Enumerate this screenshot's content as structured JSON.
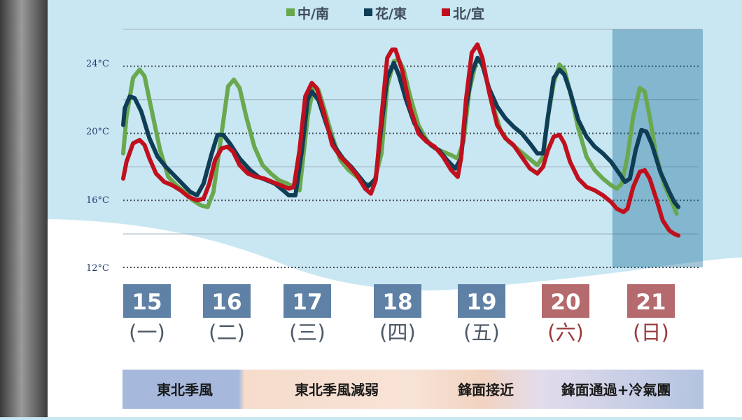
{
  "chart_data": {
    "type": "line",
    "legend": [
      "中/南",
      "花/東",
      "北/宜"
    ],
    "yticks": [
      "24°C",
      "20°C",
      "16°C",
      "12°C"
    ],
    "ylim": [
      12,
      26.2
    ],
    "xlim": [
      0,
      7
    ],
    "days": [
      {
        "num": "15",
        "weekday": "(一)",
        "weekend": false
      },
      {
        "num": "16",
        "weekday": "(二)",
        "weekend": false
      },
      {
        "num": "17",
        "weekday": "(三)",
        "weekend": false
      },
      {
        "num": "18",
        "weekday": "(四)",
        "weekend": false
      },
      {
        "num": "19",
        "weekday": "(五)",
        "weekend": false
      },
      {
        "num": "20",
        "weekday": "(六)",
        "weekend": true
      },
      {
        "num": "21",
        "weekday": "(日)",
        "weekend": true
      }
    ],
    "highlight_range": [
      6,
      7
    ],
    "series": [
      {
        "name": "中/南",
        "color": "#6aa84f",
        "points": [
          [
            0,
            18.8
          ],
          [
            0.04,
            21
          ],
          [
            0.12,
            23.3
          ],
          [
            0.2,
            23.8
          ],
          [
            0.26,
            23.4
          ],
          [
            0.32,
            22
          ],
          [
            0.45,
            19
          ],
          [
            0.55,
            17.4
          ],
          [
            0.65,
            16.9
          ],
          [
            0.75,
            16.5
          ],
          [
            0.85,
            16
          ],
          [
            0.95,
            15.7
          ],
          [
            1.03,
            15.6
          ],
          [
            1.1,
            16.5
          ],
          [
            1.2,
            20
          ],
          [
            1.28,
            22.8
          ],
          [
            1.35,
            23.2
          ],
          [
            1.42,
            22.7
          ],
          [
            1.5,
            21
          ],
          [
            1.6,
            19.2
          ],
          [
            1.7,
            18.1
          ],
          [
            1.8,
            17.6
          ],
          [
            1.9,
            17.2
          ],
          [
            2.0,
            17
          ],
          [
            2.08,
            16.8
          ],
          [
            2.15,
            16.6
          ],
          [
            2.25,
            21
          ],
          [
            2.32,
            22.8
          ],
          [
            2.38,
            22.6
          ],
          [
            2.45,
            21.5
          ],
          [
            2.55,
            19.8
          ],
          [
            2.65,
            18.4
          ],
          [
            2.75,
            17.8
          ],
          [
            2.85,
            17.4
          ],
          [
            2.95,
            17
          ],
          [
            3.05,
            16.9
          ],
          [
            3.15,
            18.8
          ],
          [
            3.22,
            22.8
          ],
          [
            3.3,
            24.3
          ],
          [
            3.36,
            24.4
          ],
          [
            3.42,
            23.8
          ],
          [
            3.5,
            22.2
          ],
          [
            3.6,
            20.5
          ],
          [
            3.7,
            19.6
          ],
          [
            3.8,
            19.1
          ],
          [
            3.9,
            18.9
          ],
          [
            4.0,
            18.7
          ],
          [
            4.08,
            18.5
          ],
          [
            4.15,
            19.5
          ],
          [
            4.22,
            22.5
          ],
          [
            4.3,
            24.2
          ],
          [
            4.35,
            24.4
          ],
          [
            4.4,
            23.8
          ],
          [
            4.5,
            21.8
          ],
          [
            4.6,
            20.2
          ],
          [
            4.7,
            19.5
          ],
          [
            4.8,
            19.1
          ],
          [
            4.9,
            18.7
          ],
          [
            5.0,
            18.3
          ],
          [
            5.05,
            18.1
          ],
          [
            5.12,
            18.6
          ],
          [
            5.18,
            21
          ],
          [
            5.25,
            23
          ],
          [
            5.32,
            24.1
          ],
          [
            5.38,
            23.8
          ],
          [
            5.45,
            22.5
          ],
          [
            5.55,
            20.3
          ],
          [
            5.65,
            18.6
          ],
          [
            5.75,
            17.8
          ],
          [
            5.85,
            17.3
          ],
          [
            5.95,
            16.9
          ],
          [
            6.02,
            16.7
          ],
          [
            6.08,
            17
          ],
          [
            6.15,
            18.6
          ],
          [
            6.22,
            21
          ],
          [
            6.3,
            22.7
          ],
          [
            6.36,
            22.5
          ],
          [
            6.42,
            21
          ],
          [
            6.5,
            18.7
          ],
          [
            6.6,
            16.9
          ],
          [
            6.7,
            15.8
          ],
          [
            6.75,
            15.2
          ]
        ]
      },
      {
        "name": "花/東",
        "color": "#0f3d55",
        "points": [
          [
            0,
            20.5
          ],
          [
            0.02,
            21.5
          ],
          [
            0.08,
            22.2
          ],
          [
            0.14,
            22.1
          ],
          [
            0.22,
            21.3
          ],
          [
            0.32,
            19.7
          ],
          [
            0.42,
            18.6
          ],
          [
            0.52,
            18
          ],
          [
            0.62,
            17.5
          ],
          [
            0.72,
            17
          ],
          [
            0.82,
            16.5
          ],
          [
            0.9,
            16.3
          ],
          [
            0.98,
            17
          ],
          [
            1.08,
            18.8
          ],
          [
            1.15,
            19.9
          ],
          [
            1.22,
            19.9
          ],
          [
            1.3,
            19.4
          ],
          [
            1.42,
            18.5
          ],
          [
            1.55,
            17.8
          ],
          [
            1.65,
            17.4
          ],
          [
            1.75,
            17.2
          ],
          [
            1.85,
            17
          ],
          [
            1.95,
            16.6
          ],
          [
            2.02,
            16.3
          ],
          [
            2.1,
            16.3
          ],
          [
            2.18,
            19
          ],
          [
            2.25,
            22
          ],
          [
            2.3,
            22.5
          ],
          [
            2.38,
            22
          ],
          [
            2.48,
            20.5
          ],
          [
            2.58,
            19.2
          ],
          [
            2.68,
            18.5
          ],
          [
            2.78,
            18
          ],
          [
            2.88,
            17.4
          ],
          [
            2.98,
            16.8
          ],
          [
            3.08,
            17.3
          ],
          [
            3.15,
            20.5
          ],
          [
            3.22,
            23.3
          ],
          [
            3.3,
            24.2
          ],
          [
            3.36,
            23.5
          ],
          [
            3.45,
            22
          ],
          [
            3.55,
            20.6
          ],
          [
            3.65,
            19.8
          ],
          [
            3.75,
            19.3
          ],
          [
            3.85,
            19
          ],
          [
            3.95,
            18.4
          ],
          [
            4.05,
            17.9
          ],
          [
            4.12,
            18.5
          ],
          [
            4.18,
            21.5
          ],
          [
            4.25,
            23.6
          ],
          [
            4.32,
            24.5
          ],
          [
            4.38,
            24.1
          ],
          [
            4.46,
            22.7
          ],
          [
            4.56,
            21.6
          ],
          [
            4.66,
            20.9
          ],
          [
            4.76,
            20.4
          ],
          [
            4.86,
            20
          ],
          [
            4.96,
            19.4
          ],
          [
            5.05,
            18.8
          ],
          [
            5.12,
            18.8
          ],
          [
            5.18,
            21
          ],
          [
            5.25,
            23.3
          ],
          [
            5.32,
            23.8
          ],
          [
            5.38,
            23.5
          ],
          [
            5.45,
            22.5
          ],
          [
            5.55,
            20.8
          ],
          [
            5.65,
            19.8
          ],
          [
            5.75,
            19.2
          ],
          [
            5.85,
            18.8
          ],
          [
            5.95,
            18.3
          ],
          [
            6.05,
            17.6
          ],
          [
            6.12,
            17.1
          ],
          [
            6.18,
            17.3
          ],
          [
            6.25,
            19
          ],
          [
            6.32,
            20.2
          ],
          [
            6.38,
            20.1
          ],
          [
            6.45,
            19.3
          ],
          [
            6.55,
            17.7
          ],
          [
            6.65,
            16.6
          ],
          [
            6.72,
            15.9
          ],
          [
            6.77,
            15.6
          ]
        ]
      },
      {
        "name": "北/宜",
        "color": "#c0101e",
        "points": [
          [
            0,
            17.3
          ],
          [
            0.04,
            18.3
          ],
          [
            0.12,
            19.4
          ],
          [
            0.2,
            19.6
          ],
          [
            0.26,
            19.3
          ],
          [
            0.32,
            18.5
          ],
          [
            0.4,
            17.6
          ],
          [
            0.5,
            17.1
          ],
          [
            0.6,
            16.9
          ],
          [
            0.7,
            16.6
          ],
          [
            0.8,
            16.2
          ],
          [
            0.9,
            16
          ],
          [
            0.98,
            16.1
          ],
          [
            1.05,
            17
          ],
          [
            1.12,
            18.4
          ],
          [
            1.2,
            19.1
          ],
          [
            1.27,
            19.2
          ],
          [
            1.34,
            18.9
          ],
          [
            1.42,
            18.1
          ],
          [
            1.52,
            17.6
          ],
          [
            1.62,
            17.4
          ],
          [
            1.72,
            17.3
          ],
          [
            1.82,
            17.1
          ],
          [
            1.92,
            16.9
          ],
          [
            2.02,
            16.7
          ],
          [
            2.08,
            16.8
          ],
          [
            2.15,
            19
          ],
          [
            2.22,
            22.2
          ],
          [
            2.3,
            23
          ],
          [
            2.36,
            22.7
          ],
          [
            2.45,
            21.2
          ],
          [
            2.55,
            19.3
          ],
          [
            2.65,
            18.6
          ],
          [
            2.75,
            18.1
          ],
          [
            2.85,
            17.5
          ],
          [
            2.95,
            16.7
          ],
          [
            3.02,
            16.4
          ],
          [
            3.08,
            17.2
          ],
          [
            3.15,
            21
          ],
          [
            3.22,
            24.5
          ],
          [
            3.28,
            25
          ],
          [
            3.32,
            25
          ],
          [
            3.4,
            23.8
          ],
          [
            3.5,
            21.5
          ],
          [
            3.6,
            20
          ],
          [
            3.7,
            19.5
          ],
          [
            3.8,
            19.2
          ],
          [
            3.9,
            18.6
          ],
          [
            4.0,
            17.8
          ],
          [
            4.08,
            17.4
          ],
          [
            4.12,
            18.5
          ],
          [
            4.18,
            22
          ],
          [
            4.25,
            24.8
          ],
          [
            4.32,
            25.3
          ],
          [
            4.38,
            24.5
          ],
          [
            4.46,
            22.5
          ],
          [
            4.56,
            20.5
          ],
          [
            4.66,
            19.7
          ],
          [
            4.76,
            19.3
          ],
          [
            4.86,
            18.6
          ],
          [
            4.96,
            17.9
          ],
          [
            5.05,
            17.6
          ],
          [
            5.12,
            18
          ],
          [
            5.18,
            19
          ],
          [
            5.25,
            19.8
          ],
          [
            5.32,
            19.9
          ],
          [
            5.38,
            19.4
          ],
          [
            5.45,
            18.3
          ],
          [
            5.55,
            17.3
          ],
          [
            5.65,
            16.8
          ],
          [
            5.75,
            16.6
          ],
          [
            5.85,
            16.3
          ],
          [
            5.95,
            15.9
          ],
          [
            6.02,
            15.5
          ],
          [
            6.1,
            15.3
          ],
          [
            6.15,
            15.5
          ],
          [
            6.22,
            16.8
          ],
          [
            6.3,
            17.7
          ],
          [
            6.36,
            17.8
          ],
          [
            6.42,
            17.3
          ],
          [
            6.5,
            16.1
          ],
          [
            6.58,
            14.8
          ],
          [
            6.66,
            14.2
          ],
          [
            6.72,
            14
          ],
          [
            6.77,
            13.9
          ]
        ]
      }
    ]
  },
  "bottom_labels": {
    "seg1": "東北季風",
    "seg2": "東北季風減弱",
    "seg3": "鋒面接近",
    "seg4": "鋒面通過+冷氣團"
  },
  "colors": {
    "weekday_box": "#5f81a6",
    "weekend_box": "#b56a6d",
    "weekday_text": "#4d5a68",
    "weekend_text": "#9a3a3c",
    "highlight": "#0f6a96",
    "bottom_blue": "#a6b9dd",
    "bottom_peach": "#f4d9c8"
  }
}
